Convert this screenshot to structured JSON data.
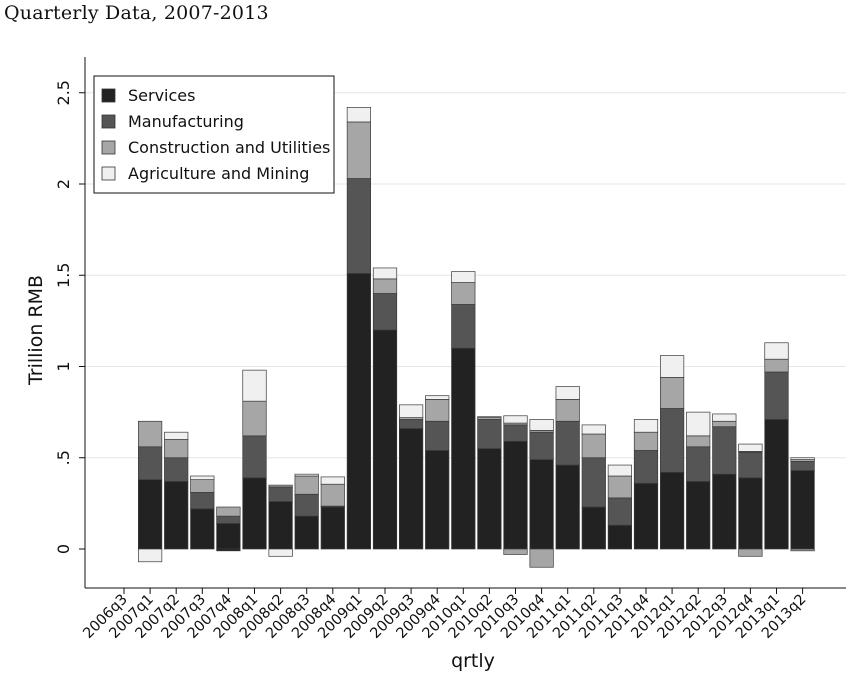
{
  "title": "Quarterly Data, 2007-2013",
  "chart_data": {
    "type": "bar",
    "stacked": true,
    "xlabel": "qrtly",
    "ylabel": "Trillion RMB",
    "ylim": [
      -0.2,
      2.6
    ],
    "yticks": [
      0,
      0.5,
      1,
      1.5,
      2,
      2.5
    ],
    "ytick_labels": [
      "0",
      ".5",
      "1",
      "1.5",
      "2",
      "2.5"
    ],
    "grid": true,
    "legend_position": "top-left",
    "categories": [
      "2006q3",
      "2007q1",
      "2007q2",
      "2007q3",
      "2007q4",
      "2008q1",
      "2008q2",
      "2008q3",
      "2008q4",
      "2009q1",
      "2009q2",
      "2009q3",
      "2009q4",
      "2010q1",
      "2010q2",
      "2010q3",
      "2010q4",
      "2011q1",
      "2011q2",
      "2011q3",
      "2011q4",
      "2012q1",
      "2012q2",
      "2012q3",
      "2012q4",
      "2013q1",
      "2013q2"
    ],
    "series": [
      {
        "name": "Services",
        "color": "#222222",
        "values": [
          0,
          0.38,
          0.37,
          0.22,
          0.14,
          0.39,
          0.26,
          0.18,
          0.23,
          1.51,
          1.2,
          0.66,
          0.54,
          1.1,
          0.55,
          0.59,
          0.49,
          0.46,
          0.23,
          0.13,
          0.36,
          0.42,
          0.37,
          0.41,
          0.39,
          0.71,
          0.43
        ]
      },
      {
        "name": "Manufacturing",
        "color": "#555555",
        "values": [
          0,
          0.18,
          0.13,
          0.09,
          0.04,
          0.23,
          0.08,
          0.12,
          0.005,
          0.52,
          0.2,
          0.05,
          0.16,
          0.24,
          0.16,
          0.09,
          0.15,
          0.24,
          0.27,
          0.15,
          0.18,
          0.35,
          0.19,
          0.26,
          0.14,
          0.26,
          0.05
        ]
      },
      {
        "name": "Construction and Utilities",
        "color": "#a6a6a6",
        "values": [
          0,
          0.14,
          0.1,
          0.07,
          0.05,
          0.19,
          0.01,
          0.1,
          0.12,
          0.31,
          0.08,
          0.01,
          0.12,
          0.12,
          0.01,
          0.01,
          0.01,
          0.12,
          0.13,
          0.12,
          0.1,
          0.17,
          0.06,
          0.03,
          0.005,
          0.07,
          0.01
        ]
      },
      {
        "name": "Agriculture and Mining",
        "color": "#f0f0f0",
        "values": [
          0,
          -0.07,
          0.04,
          0.02,
          0.0,
          0.17,
          -0.04,
          0.01,
          0.04,
          0.08,
          0.06,
          0.07,
          0.02,
          0.06,
          0.005,
          0.04,
          0.06,
          0.07,
          0.05,
          0.06,
          0.07,
          0.12,
          0.13,
          0.04,
          0.04,
          0.09,
          0.01
        ]
      }
    ],
    "negatives": [
      {
        "category": "2007q4",
        "series": "Services",
        "value": -0.01
      },
      {
        "category": "2010q3",
        "series": "Construction and Utilities",
        "value": -0.03
      },
      {
        "category": "2010q4",
        "series": "Construction and Utilities",
        "value": -0.1
      },
      {
        "category": "2012q4",
        "series": "Construction and Utilities",
        "value": -0.04
      },
      {
        "category": "2013q2",
        "series": "Construction and Utilities",
        "value": -0.01
      }
    ]
  }
}
